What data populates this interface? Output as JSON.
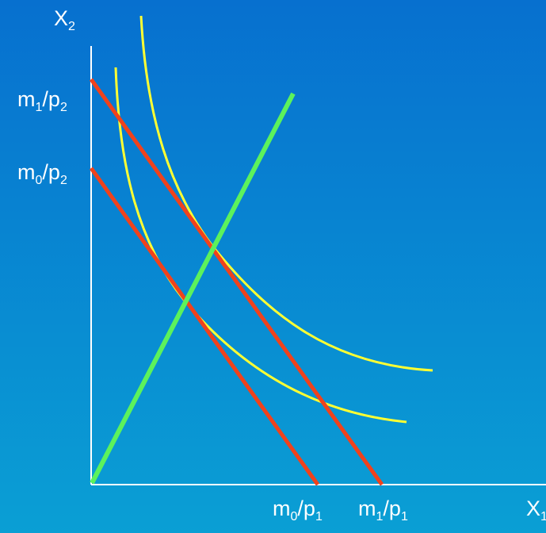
{
  "diagram": {
    "colors": {
      "background_top": "#0770cf",
      "background_bottom": "#0a9fd4",
      "axes": "#ffffff",
      "budget_lines": "#f0421c",
      "indifference_curves": "#ffff33",
      "income_expansion_path": "#5cf25c",
      "labels": "#ffffff"
    },
    "y_axis_label": {
      "base": "X",
      "sub": "2"
    },
    "x_axis_label": {
      "base": "X",
      "sub": "1"
    },
    "y_intercepts": [
      {
        "m": "m",
        "m_sub": "1",
        "slash": "/",
        "p": "p",
        "p_sub": "2"
      },
      {
        "m": "m",
        "m_sub": "0",
        "slash": "/",
        "p": "p",
        "p_sub": "2"
      }
    ],
    "x_intercepts": [
      {
        "m": "m",
        "m_sub": "0",
        "slash": "/",
        "p": "p",
        "p_sub": "1"
      },
      {
        "m": "m",
        "m_sub": "1",
        "slash": "/",
        "p": "p",
        "p_sub": "1"
      }
    ]
  }
}
